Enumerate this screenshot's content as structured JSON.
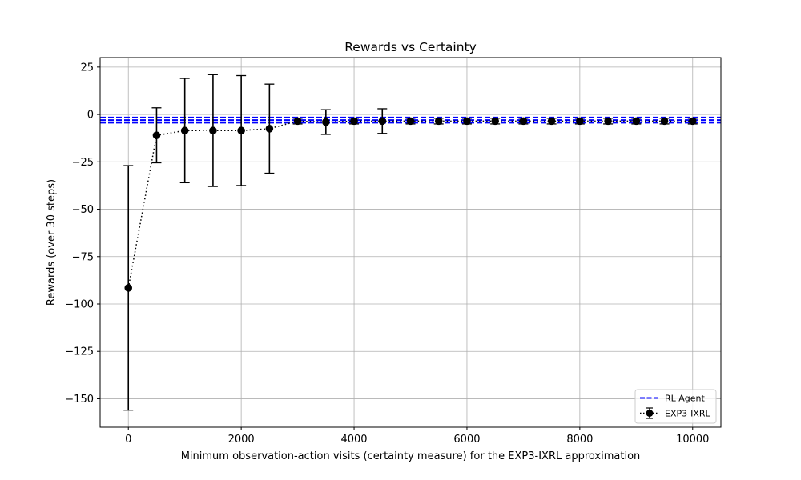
{
  "chart_data": {
    "type": "line",
    "title": "Rewards vs Certainty",
    "xlabel": "Minimum observation-action visits (certainty measure) for the EXP3-IXRL approximation",
    "ylabel": "Rewards (over 30 steps)",
    "xlim": [
      -500,
      10500
    ],
    "ylim": [
      -165,
      30
    ],
    "xticks": [
      0,
      2000,
      4000,
      6000,
      8000,
      10000
    ],
    "yticks": [
      25,
      0,
      -25,
      -50,
      -75,
      -100,
      -125,
      -150
    ],
    "grid": true,
    "legend_position": "lower-right",
    "series": [
      {
        "name": "RL Agent",
        "kind": "hline",
        "y": -3,
        "color": "#0000ff",
        "style": "dashed"
      },
      {
        "name": "EXP3-IXRL",
        "kind": "errorbar",
        "color": "#000000",
        "style": "dotted",
        "marker": "circle",
        "x": [
          0,
          500,
          1000,
          1500,
          2000,
          2500,
          3000,
          3500,
          4000,
          4500,
          5000,
          5500,
          6000,
          6500,
          7000,
          7500,
          8000,
          8500,
          9000,
          9500,
          10000
        ],
        "y": [
          -91.5,
          -11,
          -8.5,
          -8.5,
          -8.5,
          -7.5,
          -3.5,
          -4,
          -3.5,
          -3.5,
          -3.5,
          -3.5,
          -3.5,
          -3.5,
          -3.5,
          -3.5,
          -3.5,
          -3.5,
          -3.5,
          -3.5,
          -3.5
        ],
        "yerr": [
          64.5,
          14.5,
          27.5,
          29.5,
          29,
          23.5,
          1.5,
          6.5,
          1.5,
          6.5,
          1.5,
          1.5,
          1.5,
          1.5,
          1.5,
          1.5,
          1.5,
          1.5,
          1.5,
          1.5,
          1.5
        ]
      }
    ]
  }
}
